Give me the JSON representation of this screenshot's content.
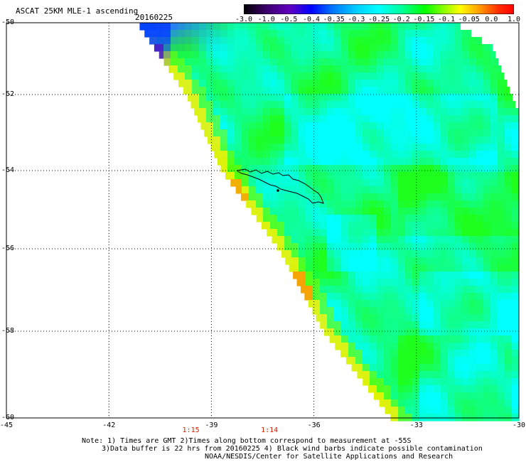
{
  "header": {
    "product_title": "ASCAT 25KM MLE-1 ascending",
    "date": "20160225"
  },
  "colorbar": {
    "labels": [
      "-3.0",
      "-1.0",
      "-0.5",
      "-0.4",
      "-0.35",
      "-0.3",
      "-0.25",
      "-0.2",
      "-0.15",
      "-0.1",
      "-0.05",
      "0.0",
      "1.0"
    ],
    "colors": [
      "#000000",
      "#4b0080",
      "#5a00d8",
      "#0000ff",
      "#0080ff",
      "#00c8ff",
      "#00ffff",
      "#00ff80",
      "#00ff00",
      "#80ff00",
      "#ffff00",
      "#ff8000",
      "#ff0000"
    ]
  },
  "map": {
    "lat_labels": [
      "-50",
      "-52",
      "-54",
      "-56",
      "-58",
      "-60"
    ],
    "lon_labels": [
      "-45",
      "-42",
      "-39",
      "-36",
      "-33",
      "-30"
    ],
    "lat_range": [
      -60,
      -50
    ],
    "lon_range": [
      -45,
      -30
    ],
    "time_labels": [
      {
        "text": "1:15",
        "lon": -39.6
      },
      {
        "text": "1:14",
        "lon": -37.3
      }
    ],
    "island": "South Georgia"
  },
  "footer": {
    "line1": "Note: 1) Times are GMT 2)Times along bottom correspond to measurement at -55S",
    "line2": "3)Data buffer is 22 hrs from 20160225 4) Black wind barbs indicate possible contamination",
    "line3": "NOAA/NESDIS/Center for Satellite Applications and Research"
  }
}
